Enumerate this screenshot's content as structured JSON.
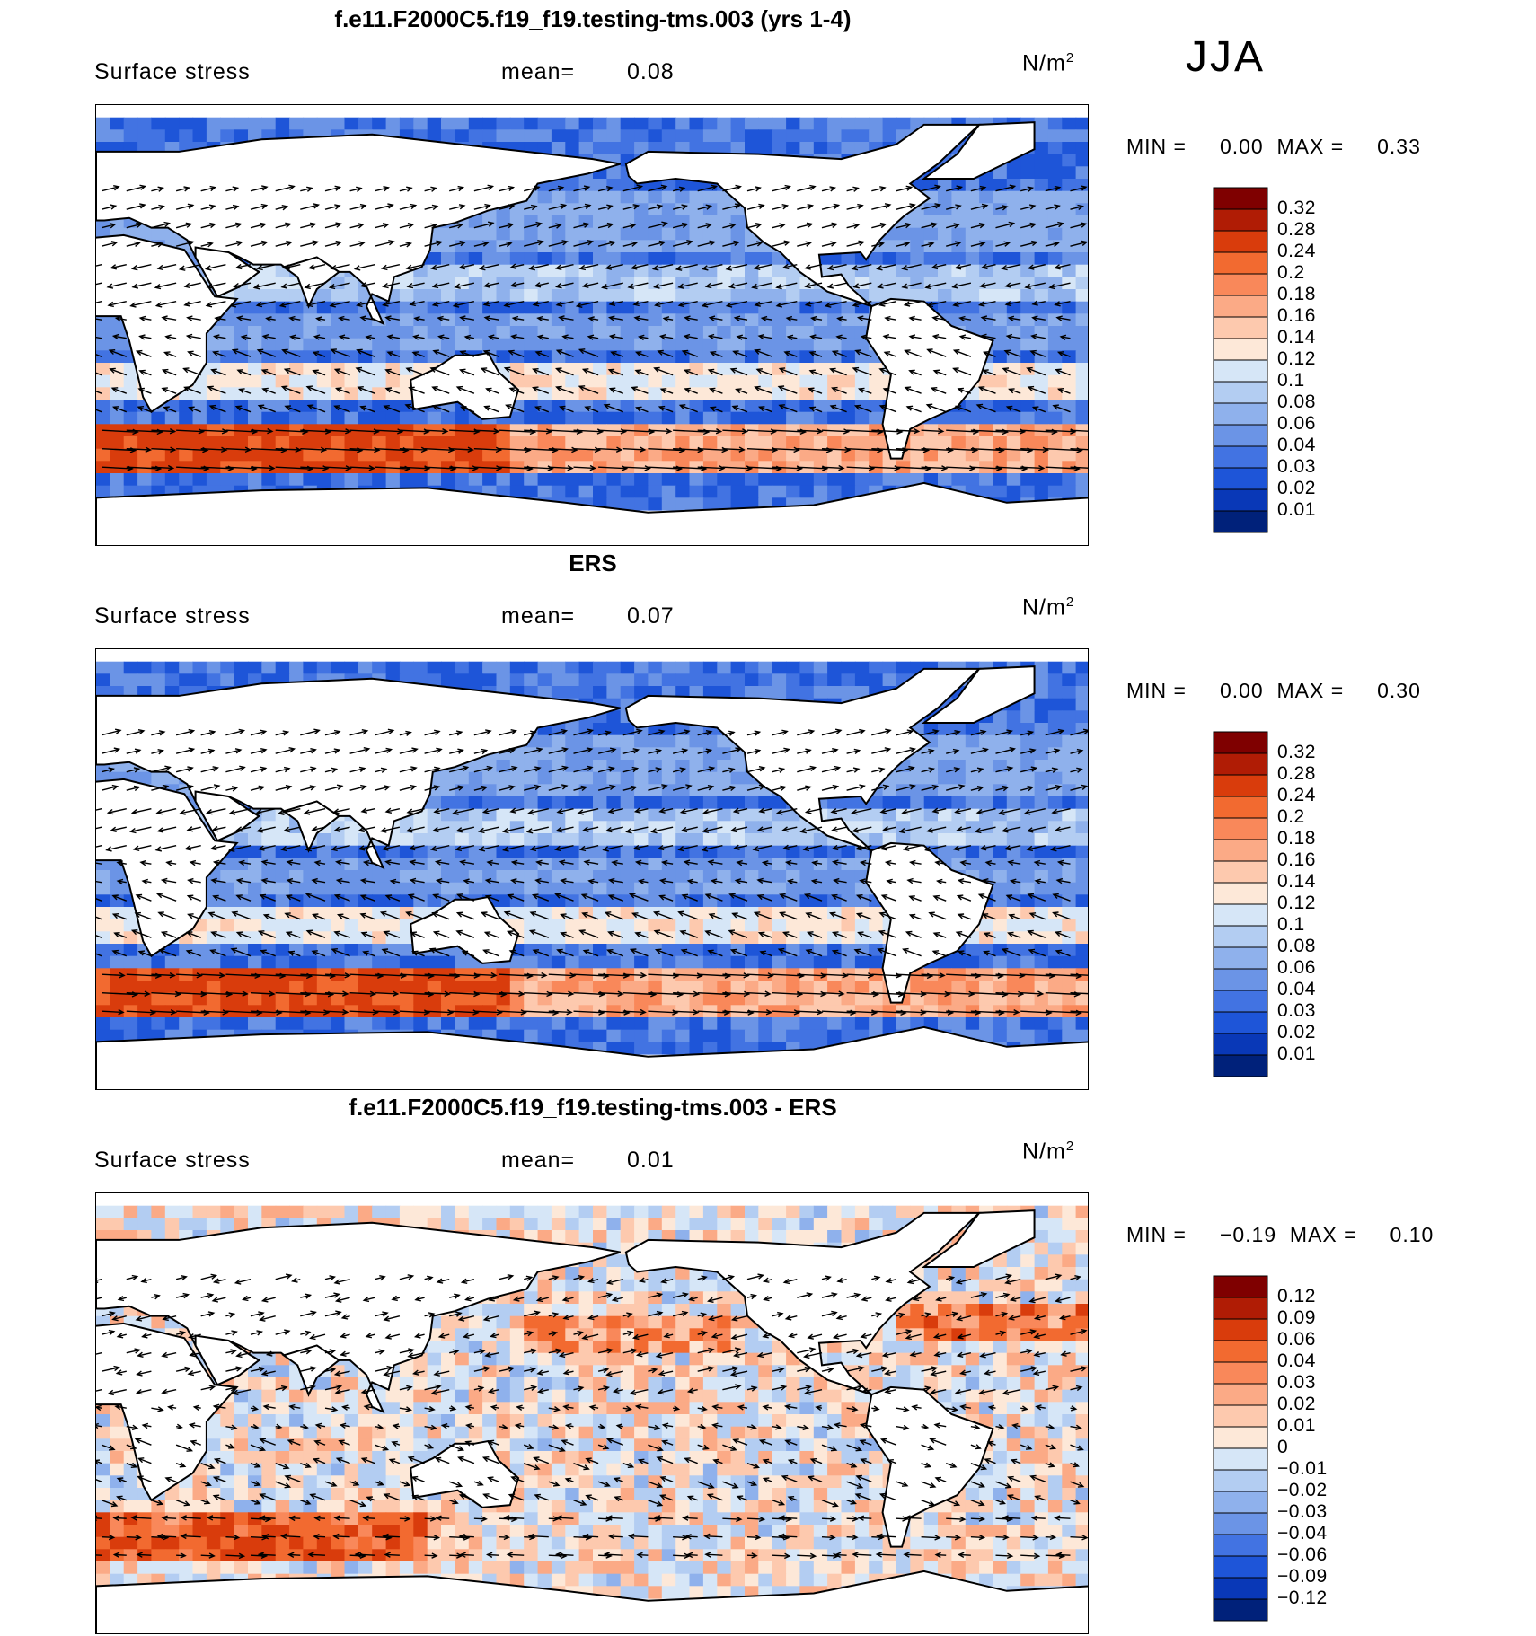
{
  "season": "JJA",
  "panels": [
    {
      "title": "f.e11.F2000C5.f19_f19.testing-tms.003 (yrs 1-4)",
      "variable": "Surface stress",
      "mean_label": "mean=",
      "mean_value": "0.08",
      "units": "N/m",
      "units_sup": "2",
      "min_label": "MIN =",
      "min_value": "0.00",
      "max_label": "MAX =",
      "max_value": "0.33",
      "colorbar_levels": [
        "0.32",
        "0.28",
        "0.24",
        "0.2",
        "0.18",
        "0.16",
        "0.14",
        "0.12",
        "0.1",
        "0.08",
        "0.06",
        "0.04",
        "0.03",
        "0.02",
        "0.01"
      ],
      "colorbar_colors": [
        "#7f0000",
        "#b01c05",
        "#d93c0c",
        "#f26a30",
        "#f9885a",
        "#fbaa86",
        "#fdc9ae",
        "#fde8d8",
        "#d6e6f7",
        "#b3cdf2",
        "#8fb1ec",
        "#6b94e6",
        "#4273e2",
        "#1e55d8",
        "#0938b7",
        "#00217a"
      ]
    },
    {
      "title": "ERS",
      "variable": "Surface stress",
      "mean_label": "mean=",
      "mean_value": "0.07",
      "units": "N/m",
      "units_sup": "2",
      "min_label": "MIN =",
      "min_value": "0.00",
      "max_label": "MAX =",
      "max_value": "0.30",
      "colorbar_levels": [
        "0.32",
        "0.28",
        "0.24",
        "0.2",
        "0.18",
        "0.16",
        "0.14",
        "0.12",
        "0.1",
        "0.08",
        "0.06",
        "0.04",
        "0.03",
        "0.02",
        "0.01"
      ],
      "colorbar_colors": [
        "#7f0000",
        "#b01c05",
        "#d93c0c",
        "#f26a30",
        "#f9885a",
        "#fbaa86",
        "#fdc9ae",
        "#fde8d8",
        "#d6e6f7",
        "#b3cdf2",
        "#8fb1ec",
        "#6b94e6",
        "#4273e2",
        "#1e55d8",
        "#0938b7",
        "#00217a"
      ]
    },
    {
      "title": "f.e11.F2000C5.f19_f19.testing-tms.003 - ERS",
      "variable": "Surface stress",
      "mean_label": "mean=",
      "mean_value": "0.01",
      "units": "N/m",
      "units_sup": "2",
      "min_label": "MIN =",
      "min_value": "−0.19",
      "max_label": "MAX =",
      "max_value": "0.10",
      "colorbar_levels": [
        "0.12",
        "0.09",
        "0.06",
        "0.04",
        "0.03",
        "0.02",
        "0.01",
        "0",
        "−0.01",
        "−0.02",
        "−0.03",
        "−0.04",
        "−0.06",
        "−0.09",
        "−0.12"
      ],
      "colorbar_colors": [
        "#7f0000",
        "#b01c05",
        "#d93c0c",
        "#f26a30",
        "#f9885a",
        "#fbaa86",
        "#fdc9ae",
        "#fde8d8",
        "#d6e6f7",
        "#b3cdf2",
        "#8fb1ec",
        "#6b94e6",
        "#4273e2",
        "#1e55d8",
        "#0938b7",
        "#00217a"
      ]
    }
  ],
  "chart_data": [
    {
      "type": "heatmap",
      "title": "f.e11.F2000C5.f19_f19.testing-tms.003 (yrs 1-4)",
      "subtitle": "JJA",
      "variable": "Surface stress",
      "units": "N/m2",
      "mean": 0.08,
      "min": 0.0,
      "max": 0.33,
      "contour_levels": [
        0.01,
        0.02,
        0.03,
        0.04,
        0.06,
        0.08,
        0.1,
        0.12,
        0.14,
        0.16,
        0.18,
        0.2,
        0.24,
        0.28,
        0.32
      ],
      "overlay": "wind stress vectors",
      "projection": "cylindrical equidistant, Pacific-centered"
    },
    {
      "type": "heatmap",
      "title": "ERS",
      "variable": "Surface stress",
      "units": "N/m2",
      "mean": 0.07,
      "min": 0.0,
      "max": 0.3,
      "contour_levels": [
        0.01,
        0.02,
        0.03,
        0.04,
        0.06,
        0.08,
        0.1,
        0.12,
        0.14,
        0.16,
        0.18,
        0.2,
        0.24,
        0.28,
        0.32
      ],
      "overlay": "wind stress vectors",
      "projection": "cylindrical equidistant, Pacific-centered"
    },
    {
      "type": "heatmap",
      "title": "f.e11.F2000C5.f19_f19.testing-tms.003 - ERS",
      "variable": "Surface stress",
      "units": "N/m2",
      "mean": 0.01,
      "min": -0.19,
      "max": 0.1,
      "contour_levels": [
        -0.12,
        -0.09,
        -0.06,
        -0.04,
        -0.03,
        -0.02,
        -0.01,
        0,
        0.01,
        0.02,
        0.03,
        0.04,
        0.06,
        0.09,
        0.12
      ],
      "overlay": "wind stress difference vectors",
      "projection": "cylindrical equidistant, Pacific-centered"
    }
  ]
}
